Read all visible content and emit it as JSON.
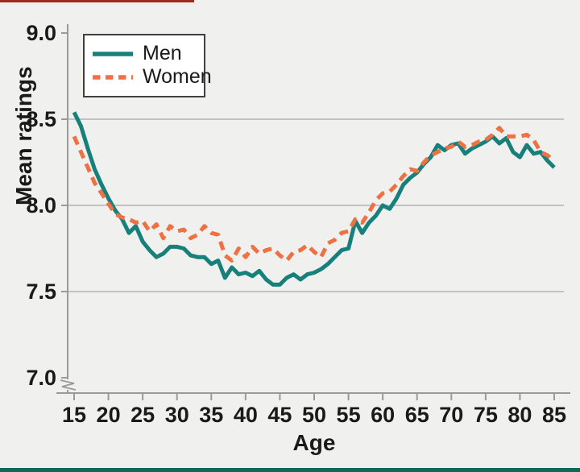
{
  "chart_data": {
    "type": "line",
    "title": "",
    "xlabel": "Age",
    "ylabel": "Mean ratings",
    "x_ticks": [
      15,
      20,
      25,
      30,
      35,
      40,
      45,
      50,
      55,
      60,
      65,
      70,
      75,
      80,
      85
    ],
    "y_ticks": [
      7.0,
      7.5,
      8.0,
      8.5,
      9.0
    ],
    "y_tick_labels": [
      "7.0",
      "7.5",
      "8.0",
      "8.5",
      "9.0"
    ],
    "gridlines_at": [
      7.5,
      8.0,
      8.5
    ],
    "ylim": [
      7.0,
      9.0
    ],
    "xlim": [
      15,
      85
    ],
    "axis_break_below": 7.0,
    "legend_position": "top-left",
    "grid": "horizontal-only",
    "x": [
      15,
      16,
      17,
      18,
      19,
      20,
      21,
      22,
      23,
      24,
      25,
      26,
      27,
      28,
      29,
      30,
      31,
      32,
      33,
      34,
      35,
      36,
      37,
      38,
      39,
      40,
      41,
      42,
      43,
      44,
      45,
      46,
      47,
      48,
      49,
      50,
      51,
      52,
      53,
      54,
      55,
      56,
      57,
      58,
      59,
      60,
      61,
      62,
      63,
      64,
      65,
      66,
      67,
      68,
      69,
      70,
      71,
      72,
      73,
      74,
      75,
      76,
      77,
      78,
      79,
      80,
      81,
      82,
      83,
      84,
      85
    ],
    "series": [
      {
        "name": "Men",
        "style": "solid",
        "color": "#17807a",
        "values": [
          8.54,
          8.46,
          8.33,
          8.21,
          8.12,
          8.04,
          7.97,
          7.92,
          7.84,
          7.88,
          7.79,
          7.74,
          7.7,
          7.72,
          7.76,
          7.76,
          7.75,
          7.71,
          7.7,
          7.7,
          7.66,
          7.68,
          7.58,
          7.64,
          7.6,
          7.61,
          7.59,
          7.62,
          7.57,
          7.54,
          7.54,
          7.58,
          7.6,
          7.57,
          7.6,
          7.61,
          7.63,
          7.66,
          7.7,
          7.74,
          7.75,
          7.91,
          7.84,
          7.9,
          7.94,
          8.0,
          7.98,
          8.04,
          8.12,
          8.16,
          8.19,
          8.24,
          8.28,
          8.35,
          8.32,
          8.35,
          8.36,
          8.3,
          8.33,
          8.35,
          8.37,
          8.4,
          8.36,
          8.39,
          8.31,
          8.28,
          8.35,
          8.3,
          8.31,
          8.26,
          8.22
        ]
      },
      {
        "name": "Women",
        "style": "dashed",
        "color": "#ee7143",
        "values": [
          8.4,
          8.31,
          8.22,
          8.13,
          8.07,
          8.01,
          7.95,
          7.93,
          7.92,
          7.9,
          7.91,
          7.85,
          7.89,
          7.81,
          7.88,
          7.85,
          7.86,
          7.81,
          7.83,
          7.88,
          7.84,
          7.83,
          7.71,
          7.68,
          7.75,
          7.7,
          7.76,
          7.72,
          7.74,
          7.75,
          7.71,
          7.68,
          7.73,
          7.74,
          7.77,
          7.73,
          7.7,
          7.78,
          7.8,
          7.84,
          7.85,
          7.92,
          7.9,
          7.96,
          8.03,
          8.07,
          8.08,
          8.12,
          8.17,
          8.21,
          8.2,
          8.25,
          8.29,
          8.31,
          8.33,
          8.34,
          8.37,
          8.34,
          8.35,
          8.37,
          8.38,
          8.41,
          8.45,
          8.4,
          8.4,
          8.4,
          8.41,
          8.38,
          8.31,
          8.29,
          8.26
        ]
      }
    ]
  },
  "colors": {
    "background": "#f0f1ef",
    "men_line": "#17807a",
    "women_line": "#ee7143",
    "gridline": "#b3b3b3",
    "axis": "#9a9a9a",
    "text": "#1a1a1a",
    "legend_border": "#3f3f3f",
    "legend_bg": "#ffffff",
    "accent_top_bar": "#9b2a1d",
    "bottom_strip": "#15655b"
  }
}
